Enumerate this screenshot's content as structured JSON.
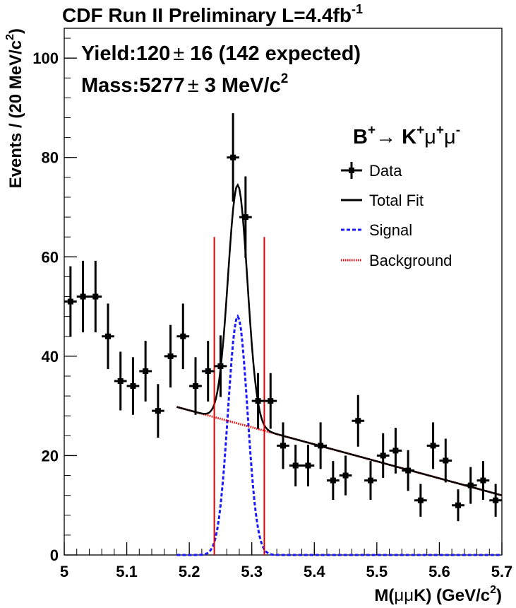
{
  "chart_data": {
    "type": "scatter",
    "title": "CDF Run II Preliminary L=4.4fb",
    "title_sup": "-1",
    "annotations": {
      "yield_prefix": "Yield:120",
      "yield_pm": "±",
      "yield_suffix": " 16 (142 expected)",
      "mass_prefix": "Mass:5277",
      "mass_pm": "±",
      "mass_suffix": " 3 MeV/c",
      "mass_sup": "2"
    },
    "decay": {
      "base1": "B",
      "sup1": "+",
      "arrow": "→ K",
      "sup2": "+",
      "mu1": "μ",
      "sup3": "+",
      "mu2": "μ",
      "sup4": "-"
    },
    "xlabel": {
      "pre": "M(",
      "mid": "μμ",
      "post": "K) (GeV/c",
      "sup": "2",
      "close": ")"
    },
    "ylabel": {
      "pre": "Events / (20 MeV/c",
      "sup": "2",
      "close": ")"
    },
    "xlim": [
      5.0,
      5.7
    ],
    "ylim": [
      0,
      106
    ],
    "x_ticks": [
      5.0,
      5.1,
      5.2,
      5.3,
      5.4,
      5.5,
      5.6,
      5.7
    ],
    "x_tick_labels": [
      "5",
      "5.1",
      "5.2",
      "5.3",
      "5.4",
      "5.5",
      "5.6",
      "5.7"
    ],
    "y_ticks": [
      0,
      20,
      40,
      60,
      80,
      100
    ],
    "y_tick_labels": [
      "0",
      "20",
      "40",
      "60",
      "80",
      "100"
    ],
    "legend": {
      "position": "top-right",
      "entries": [
        {
          "label": "Data",
          "style": "data"
        },
        {
          "label": "Total Fit",
          "style": "solid-black"
        },
        {
          "label": "Signal",
          "style": "dashed-blue"
        },
        {
          "label": "Background",
          "style": "dotted-red"
        }
      ]
    },
    "colors": {
      "data": "#000000",
      "total": "#000000",
      "signal": "#1a1aff",
      "background": "#ff0000",
      "window": "#e00000"
    },
    "series": [
      {
        "name": "Data",
        "points": [
          {
            "x": 5.01,
            "y": 51,
            "err": 7.1
          },
          {
            "x": 5.03,
            "y": 52,
            "err": 7.2
          },
          {
            "x": 5.05,
            "y": 52,
            "err": 7.2
          },
          {
            "x": 5.07,
            "y": 44,
            "err": 6.6
          },
          {
            "x": 5.09,
            "y": 35,
            "err": 5.9
          },
          {
            "x": 5.11,
            "y": 34,
            "err": 5.8
          },
          {
            "x": 5.13,
            "y": 37,
            "err": 6.1
          },
          {
            "x": 5.15,
            "y": 29,
            "err": 5.4
          },
          {
            "x": 5.17,
            "y": 40,
            "err": 6.3
          },
          {
            "x": 5.19,
            "y": 44,
            "err": 6.6
          },
          {
            "x": 5.21,
            "y": 34,
            "err": 5.8
          },
          {
            "x": 5.23,
            "y": 37,
            "err": 6.1
          },
          {
            "x": 5.25,
            "y": 38,
            "err": 6.2
          },
          {
            "x": 5.27,
            "y": 80,
            "err": 8.9
          },
          {
            "x": 5.29,
            "y": 68,
            "err": 8.2
          },
          {
            "x": 5.31,
            "y": 31,
            "err": 5.6
          },
          {
            "x": 5.33,
            "y": 31,
            "err": 5.6
          },
          {
            "x": 5.35,
            "y": 22,
            "err": 4.7
          },
          {
            "x": 5.37,
            "y": 18,
            "err": 4.2
          },
          {
            "x": 5.39,
            "y": 18,
            "err": 4.2
          },
          {
            "x": 5.41,
            "y": 22,
            "err": 4.7
          },
          {
            "x": 5.43,
            "y": 15,
            "err": 3.9
          },
          {
            "x": 5.45,
            "y": 16,
            "err": 4.0
          },
          {
            "x": 5.47,
            "y": 27,
            "err": 5.2
          },
          {
            "x": 5.49,
            "y": 15,
            "err": 3.9
          },
          {
            "x": 5.51,
            "y": 20,
            "err": 4.5
          },
          {
            "x": 5.53,
            "y": 21,
            "err": 4.6
          },
          {
            "x": 5.55,
            "y": 17,
            "err": 4.1
          },
          {
            "x": 5.57,
            "y": 11,
            "err": 3.3
          },
          {
            "x": 5.59,
            "y": 22,
            "err": 4.7
          },
          {
            "x": 5.61,
            "y": 19,
            "err": 4.4
          },
          {
            "x": 5.63,
            "y": 10,
            "err": 3.2
          },
          {
            "x": 5.65,
            "y": 14,
            "err": 3.7
          },
          {
            "x": 5.67,
            "y": 15,
            "err": 3.9
          },
          {
            "x": 5.69,
            "y": 11,
            "err": 3.3
          }
        ]
      },
      {
        "name": "Total Fit",
        "range": [
          5.18,
          5.7
        ]
      },
      {
        "name": "Signal",
        "peak": 48,
        "mean": 5.2775,
        "sigma": 0.0155,
        "range": [
          5.18,
          5.7
        ]
      },
      {
        "name": "Background",
        "y_at_5_18": 29.8,
        "y_at_5_70": 12.0,
        "range": [
          5.18,
          5.7
        ]
      }
    ],
    "signal_window": [
      5.24,
      5.32
    ]
  }
}
